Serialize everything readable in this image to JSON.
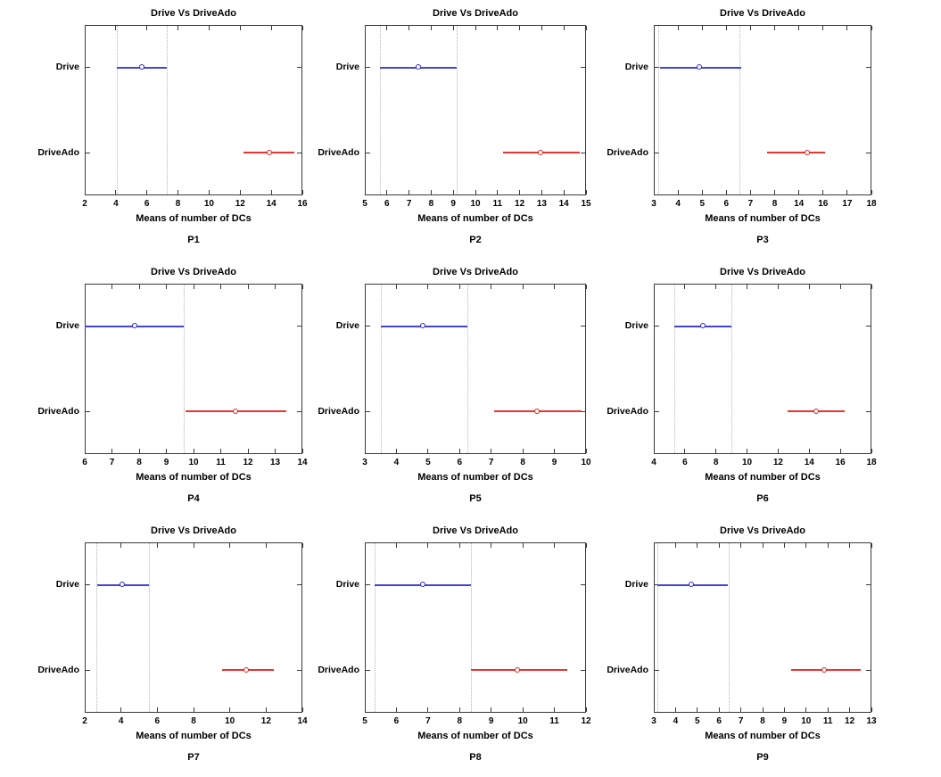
{
  "figure": {
    "background": "#ffffff",
    "grid_rows": 3,
    "grid_cols": 3
  },
  "chart_data": {
    "type": "line",
    "subtype": "multiple-comparison-intervals",
    "shared": {
      "title": "Drive Vs DriveAdo",
      "xlabel": "Means of number of DCs",
      "categories": [
        "Drive",
        "DriveAdo"
      ],
      "legend": "none",
      "grid": "vertical dotted reference lines at Drive interval bounds",
      "colors": {
        "drive_line": "#4343d8",
        "drive_marker": "#2a2ac8",
        "driveado_line": "#ea3530",
        "driveado_marker": "#d22722",
        "reference_line": "#b4b4b4",
        "axis": "#3a3a3a",
        "text": "#000000"
      }
    },
    "panels": [
      {
        "label": "P1",
        "xticks": [
          2,
          4,
          6,
          8,
          10,
          12,
          14,
          16
        ],
        "drive": {
          "lo": 4.05,
          "mean": 5.7,
          "hi": 7.3
        },
        "driveado": {
          "lo": 12.2,
          "mean": 13.9,
          "hi": 15.5
        },
        "ref_lines": [
          4.05,
          7.3
        ]
      },
      {
        "label": "P2",
        "xticks": [
          5,
          6,
          7,
          8,
          9,
          10,
          11,
          12,
          13,
          14,
          15
        ],
        "drive": {
          "lo": 5.7,
          "mean": 7.45,
          "hi": 9.15
        },
        "driveado": {
          "lo": 11.25,
          "mean": 12.95,
          "hi": 14.7
        },
        "ref_lines": [
          5.7,
          9.15
        ]
      },
      {
        "label": "P3",
        "xticks": [
          3,
          4,
          5,
          6,
          7,
          8,
          14,
          16,
          17,
          18
        ],
        "drive": {
          "lo": 3.25,
          "mean": 4.9,
          "hi": 6.6
        },
        "driveado": {
          "lo": 7.7,
          "mean": 14.75,
          "hi": 16.1
        },
        "ref_lines": [
          3.2,
          6.55
        ]
      },
      {
        "label": "P4",
        "xticks": [
          6,
          7,
          8,
          9,
          10,
          11,
          12,
          13,
          14
        ],
        "drive": {
          "lo": 6.0,
          "mean": 7.85,
          "hi": 9.65
        },
        "driveado": {
          "lo": 9.7,
          "mean": 11.55,
          "hi": 13.4
        },
        "ref_lines": [
          9.65
        ]
      },
      {
        "label": "P5",
        "xticks": [
          3,
          4,
          5,
          6,
          7,
          8,
          9,
          10
        ],
        "drive": {
          "lo": 3.5,
          "mean": 4.85,
          "hi": 6.25
        },
        "driveado": {
          "lo": 7.1,
          "mean": 8.45,
          "hi": 9.85
        },
        "ref_lines": [
          3.5,
          6.25
        ]
      },
      {
        "label": "P6",
        "xticks": [
          4,
          6,
          8,
          10,
          12,
          14,
          16,
          18
        ],
        "drive": {
          "lo": 5.3,
          "mean": 7.2,
          "hi": 9.0
        },
        "driveado": {
          "lo": 12.6,
          "mean": 14.45,
          "hi": 16.3
        },
        "ref_lines": [
          5.3,
          9.0
        ]
      },
      {
        "label": "P7",
        "xticks": [
          2,
          4,
          6,
          8,
          10,
          12,
          14
        ],
        "drive": {
          "lo": 2.7,
          "mean": 4.1,
          "hi": 5.55
        },
        "driveado": {
          "lo": 9.55,
          "mean": 10.95,
          "hi": 12.45
        },
        "ref_lines": [
          2.65,
          5.55
        ]
      },
      {
        "label": "P8",
        "xticks": [
          5,
          6,
          7,
          8,
          9,
          10,
          11,
          12
        ],
        "drive": {
          "lo": 5.3,
          "mean": 6.85,
          "hi": 8.35
        },
        "driveado": {
          "lo": 8.35,
          "mean": 9.85,
          "hi": 11.4
        },
        "ref_lines": [
          5.3,
          8.35
        ]
      },
      {
        "label": "P9",
        "xticks": [
          3,
          4,
          5,
          6,
          7,
          8,
          9,
          10,
          11,
          12,
          13
        ],
        "drive": {
          "lo": 3.15,
          "mean": 4.75,
          "hi": 6.4
        },
        "driveado": {
          "lo": 9.3,
          "mean": 10.85,
          "hi": 12.5
        },
        "ref_lines": [
          3.15,
          6.45
        ]
      }
    ]
  }
}
